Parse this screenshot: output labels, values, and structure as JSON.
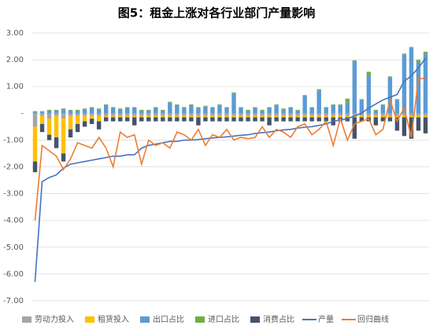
{
  "chart_data": {
    "type": "bar-line",
    "title": "图5：租金上涨对各行业部门产量影响",
    "categories": [
      null,
      null,
      null,
      null,
      null,
      null,
      null,
      null,
      null,
      null,
      null,
      null,
      null,
      null,
      null,
      null,
      null,
      null,
      null,
      null,
      null,
      null,
      null,
      null,
      null,
      null,
      null,
      null,
      null,
      null,
      null,
      null,
      null,
      null,
      null,
      null,
      null,
      null,
      null,
      null,
      null,
      null,
      null,
      null,
      null,
      null,
      null,
      null,
      null,
      null,
      null,
      null,
      null,
      null,
      null,
      null
    ],
    "ylim": [
      -7,
      3
    ],
    "yticks": [
      {
        "value": 3,
        "label": "3.00"
      },
      {
        "value": 2,
        "label": "2.00"
      },
      {
        "value": 1,
        "label": "1.00"
      },
      {
        "value": 0,
        "label": "-"
      },
      {
        "value": -1,
        "label": "-1.00"
      },
      {
        "value": -2,
        "label": "-2.00"
      },
      {
        "value": -3,
        "label": "-3.00"
      },
      {
        "value": -4,
        "label": "-4.00"
      },
      {
        "value": -5,
        "label": "-5.00"
      },
      {
        "value": -6,
        "label": "-6.00"
      },
      {
        "value": -7,
        "label": "-7.00"
      }
    ],
    "grid": true,
    "legend": "bottom",
    "series": [
      {
        "name": "劳动力投入",
        "kind": "bar",
        "color": "#a5a5a5",
        "values": [
          -0.5,
          -0.1,
          -0.2,
          -0.1,
          -0.2,
          -0.1,
          -0.1,
          -0.1,
          -0.1,
          -0.1,
          -0.1,
          -0.1,
          -0.1,
          -0.1,
          -0.1,
          -0.1,
          -0.1,
          -0.1,
          -0.1,
          -0.1,
          -0.1,
          -0.1,
          -0.1,
          -0.1,
          -0.1,
          -0.1,
          -0.1,
          -0.1,
          -0.1,
          -0.1,
          -0.1,
          -0.1,
          -0.1,
          -0.1,
          -0.1,
          -0.1,
          -0.1,
          -0.1,
          -0.1,
          -0.1,
          -0.1,
          -0.1,
          -0.1,
          -0.1,
          -0.1,
          -0.1,
          -0.1,
          -0.1,
          -0.1,
          -0.1,
          -0.1,
          -0.1,
          -0.1,
          -0.1,
          -0.1,
          -0.1
        ]
      },
      {
        "name": "租赁投入",
        "kind": "bar",
        "color": "#ffc000",
        "values": [
          -1.3,
          -0.3,
          -0.6,
          -0.8,
          -1.3,
          -0.5,
          -0.3,
          -0.2,
          -0.1,
          -0.2,
          -0.05,
          -0.05,
          -0.05,
          -0.05,
          -0.05,
          -0.05,
          -0.05,
          -0.05,
          -0.05,
          -0.05,
          -0.05,
          -0.05,
          -0.05,
          -0.05,
          -0.05,
          -0.05,
          -0.05,
          -0.05,
          -0.05,
          -0.05,
          -0.05,
          -0.05,
          -0.05,
          -0.05,
          -0.05,
          -0.05,
          -0.05,
          -0.05,
          -0.05,
          -0.05,
          -0.05,
          -0.05,
          -0.05,
          -0.05,
          -0.05,
          -0.05,
          -0.05,
          -0.05,
          -0.05,
          -0.05,
          -0.05,
          -0.05,
          -0.05,
          -0.05,
          -0.05,
          -0.05
        ]
      },
      {
        "name": "出口占比",
        "kind": "bar",
        "color": "#5b9bd5",
        "values": [
          0.05,
          0.05,
          0.1,
          0.1,
          0.15,
          0.1,
          0.1,
          0.15,
          0.2,
          0.15,
          0.3,
          0.2,
          0.15,
          0.2,
          0.2,
          0.1,
          0.1,
          0.2,
          0.1,
          0.4,
          0.3,
          0.2,
          0.3,
          0.2,
          0.25,
          0.2,
          0.3,
          0.2,
          0.75,
          0.2,
          0.1,
          0.2,
          0.1,
          0.2,
          0.3,
          0.15,
          0.2,
          0.1,
          0.65,
          0.2,
          0.85,
          0.2,
          0.3,
          0.3,
          0.4,
          1.95,
          0.5,
          1.4,
          0.1,
          0.3,
          1.35,
          0.5,
          2.2,
          2.45,
          1.9,
          2.2
        ]
      },
      {
        "name": "进口占比",
        "kind": "bar",
        "color": "#70ad47",
        "values": [
          0.03,
          0.03,
          0.03,
          0.03,
          0.03,
          0.03,
          0.03,
          0.03,
          0.03,
          0.03,
          0.03,
          0.03,
          0.03,
          0.03,
          0.03,
          0.03,
          0.03,
          0.03,
          0.03,
          0.03,
          0.03,
          0.03,
          0.03,
          0.03,
          0.03,
          0.03,
          0.03,
          0.03,
          0.03,
          0.03,
          0.03,
          0.03,
          0.03,
          0.03,
          0.03,
          0.03,
          0.03,
          0.03,
          0.03,
          0.03,
          0.05,
          0.03,
          0.03,
          0.03,
          0.15,
          0.03,
          0.03,
          0.15,
          0.03,
          0.03,
          0.03,
          0.03,
          0.03,
          0.03,
          0.1,
          0.1
        ]
      },
      {
        "name": "消费占比",
        "kind": "bar",
        "color": "#44546a",
        "values": [
          -0.4,
          -0.3,
          -0.2,
          -0.4,
          -0.3,
          -0.3,
          -0.3,
          -0.2,
          -0.2,
          -0.3,
          -0.15,
          -0.15,
          -0.15,
          -0.15,
          -0.3,
          -0.15,
          -0.15,
          -0.15,
          -0.15,
          -0.15,
          -0.15,
          -0.15,
          -0.15,
          -0.3,
          -0.15,
          -0.15,
          -0.15,
          -0.15,
          -0.15,
          -0.15,
          -0.15,
          -0.15,
          -0.15,
          -0.3,
          -0.15,
          -0.15,
          -0.15,
          -0.15,
          -0.15,
          -0.15,
          -0.15,
          -0.15,
          -0.3,
          -0.15,
          -0.15,
          -0.8,
          -0.15,
          -0.15,
          -0.3,
          -0.15,
          -0.15,
          -0.5,
          -0.7,
          -0.8,
          -0.5,
          -0.6
        ]
      },
      {
        "name": "产量",
        "kind": "line",
        "color": "#4472c4",
        "values": [
          -6.3,
          -2.55,
          -2.4,
          -2.3,
          -2.05,
          -1.9,
          -1.85,
          -1.8,
          -1.75,
          -1.7,
          -1.65,
          -1.6,
          -1.6,
          -1.55,
          -1.55,
          -1.3,
          -1.2,
          -1.15,
          -1.1,
          -1.05,
          -1.05,
          -1.0,
          -1.0,
          -0.98,
          -0.95,
          -0.92,
          -0.9,
          -0.88,
          -0.85,
          -0.82,
          -0.8,
          -0.75,
          -0.72,
          -0.7,
          -0.65,
          -0.62,
          -0.6,
          -0.55,
          -0.52,
          -0.5,
          -0.45,
          -0.4,
          -0.3,
          -0.25,
          -0.2,
          -0.1,
          0.0,
          0.2,
          0.35,
          0.5,
          0.6,
          0.7,
          1.2,
          1.4,
          1.7,
          2.05
        ]
      },
      {
        "name": "回归曲线",
        "kind": "line",
        "color": "#ed7d31",
        "values": [
          -4.0,
          -1.2,
          -1.4,
          -1.6,
          -2.1,
          -1.7,
          -1.1,
          -1.2,
          -1.3,
          -0.9,
          -1.3,
          -2.0,
          -0.7,
          -0.9,
          -0.8,
          -1.9,
          -1.0,
          -1.2,
          -1.1,
          -1.3,
          -0.7,
          -0.8,
          -1.0,
          -0.6,
          -1.2,
          -0.8,
          -0.9,
          -0.6,
          -1.0,
          -0.9,
          -0.95,
          -0.9,
          -0.5,
          -0.9,
          -0.6,
          -0.7,
          -0.9,
          -0.5,
          -0.4,
          -0.8,
          -0.6,
          -0.3,
          -1.2,
          -0.2,
          -1.0,
          -0.4,
          -0.3,
          -0.2,
          -0.8,
          -0.6,
          0.5,
          -0.3,
          0.2,
          -0.9,
          1.3,
          1.3
        ]
      }
    ]
  }
}
